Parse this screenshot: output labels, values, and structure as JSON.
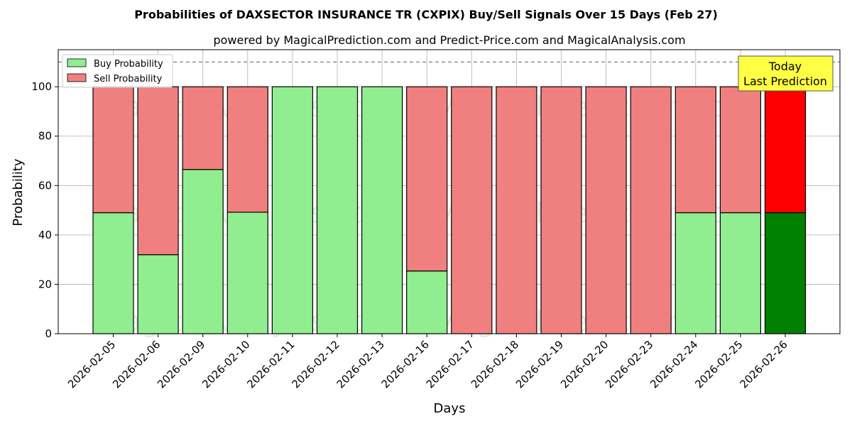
{
  "chart_data": {
    "type": "bar",
    "stacked": true,
    "title": "Probabilities of DAXSECTOR INSURANCE TR (CXPIX) Buy/Sell Signals Over 15 Days (Feb 27)",
    "subtitle": "powered by MagicalPrediction.com and Predict-Price.com and MagicalAnalysis.com",
    "xlabel": "Days",
    "ylabel": "Probability",
    "ylim": [
      0,
      115
    ],
    "yticks": [
      0,
      20,
      40,
      60,
      80,
      100
    ],
    "reference_line": 110,
    "grid": true,
    "legend_position": "top-left",
    "categories": [
      "2026-02-05",
      "2026-02-06",
      "2026-02-09",
      "2026-02-10",
      "2026-02-11",
      "2026-02-12",
      "2026-02-13",
      "2026-02-16",
      "2026-02-17",
      "2026-02-18",
      "2026-02-19",
      "2026-02-20",
      "2026-02-23",
      "2026-02-24",
      "2026-02-25",
      "2026-02-26"
    ],
    "series": [
      {
        "name": "Buy Probability",
        "color": "#90ee90",
        "values": [
          49,
          32,
          66.5,
          49.2,
          100,
          100,
          100,
          25.4,
          0,
          0,
          0,
          0,
          0,
          49,
          49,
          49
        ]
      },
      {
        "name": "Sell Probability",
        "color": "#f08080",
        "values": [
          51,
          68,
          33.5,
          50.8,
          0,
          0,
          0,
          74.6,
          100,
          100,
          100,
          100,
          100,
          51,
          51,
          51
        ]
      }
    ],
    "highlight": {
      "index": 15,
      "buy_color": "#008000",
      "sell_color": "#ff0000"
    },
    "annotation": {
      "lines": [
        "Today",
        "Last Prediction"
      ],
      "background": "#ffff44"
    },
    "watermarks": [
      "MagicalAnalysis.com",
      "MagicalPrediction.com"
    ]
  }
}
